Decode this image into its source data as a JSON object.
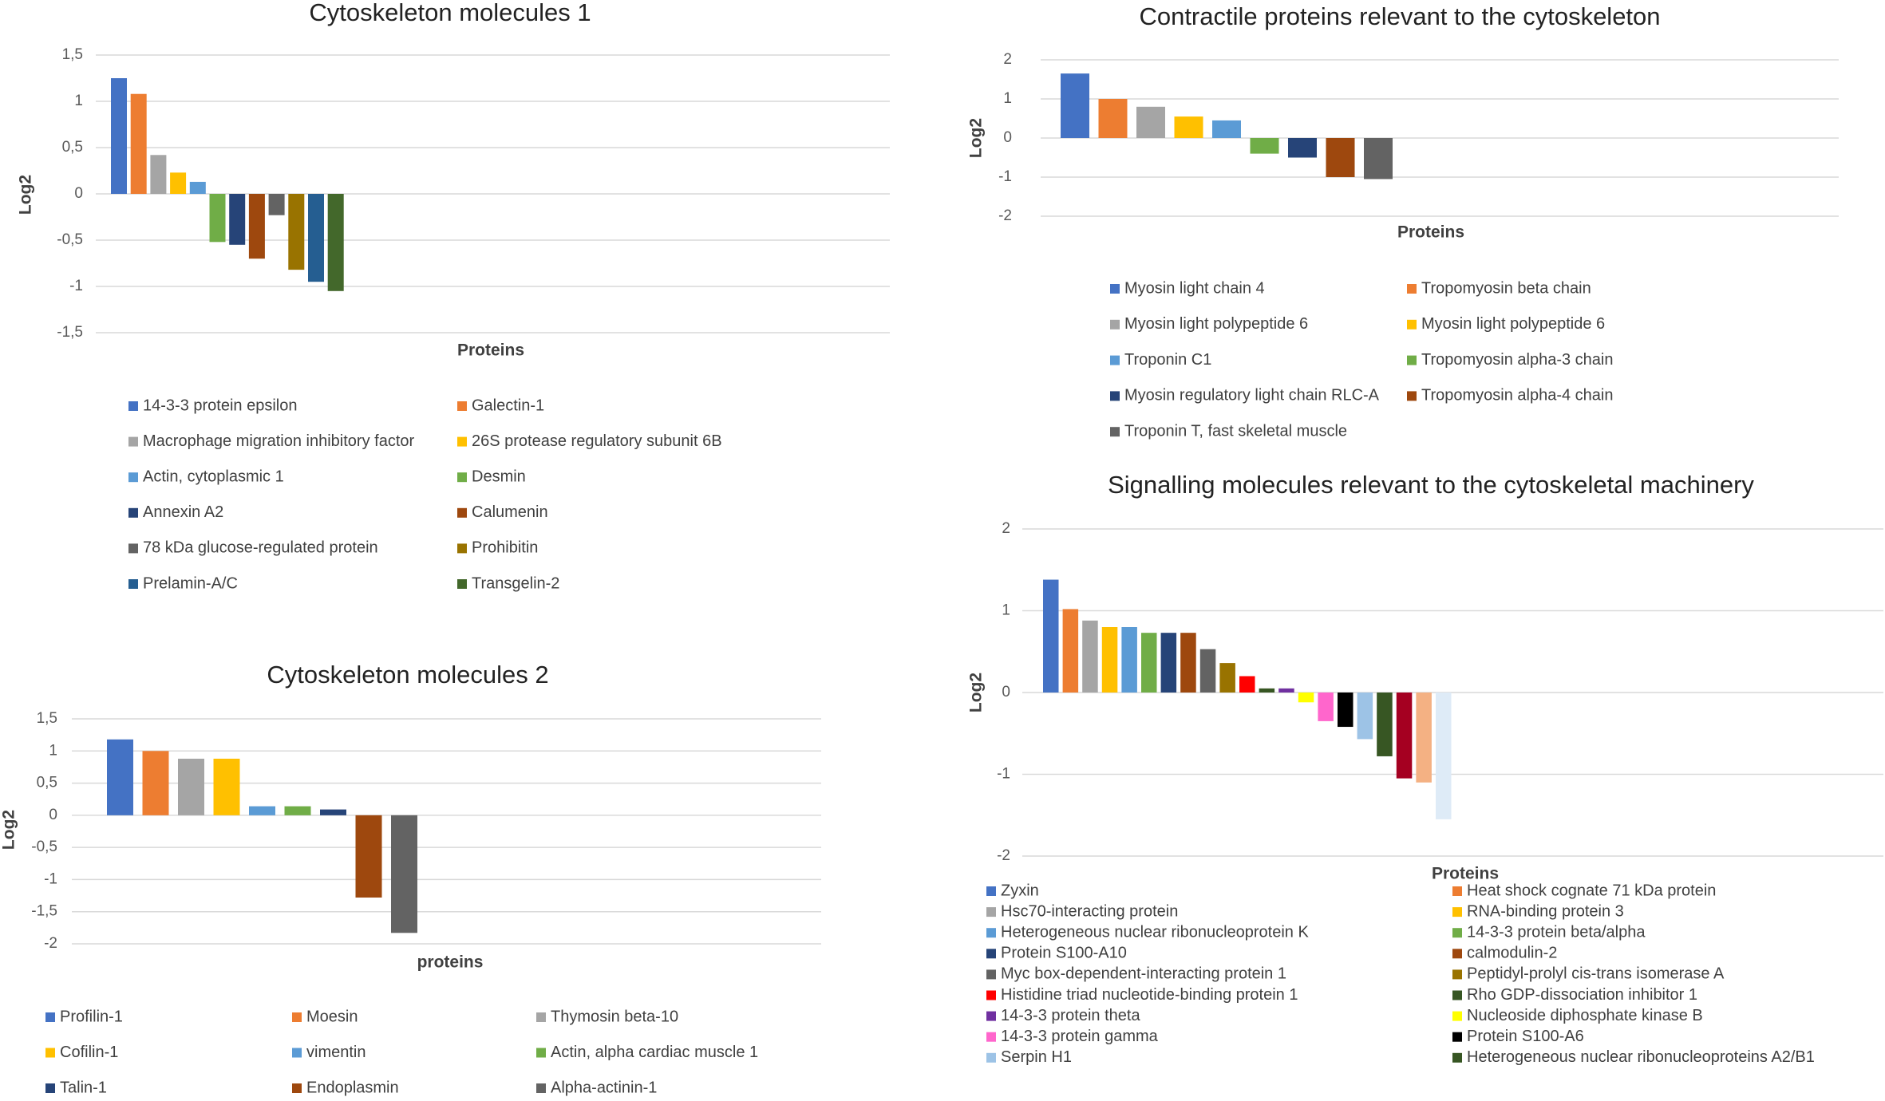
{
  "chart_data": [
    {
      "type": "bar",
      "title": "Cytoskeleton molecules 1",
      "x_label": "Proteins",
      "y_label": "Log2",
      "ylim": [
        -1.5,
        1.5
      ],
      "yticks": [
        {
          "value": 1.5,
          "label": "1,5"
        },
        1,
        {
          "value": 0.5,
          "label": "0,5"
        },
        0,
        {
          "value": -0.5,
          "label": "-0,5"
        },
        -1,
        {
          "value": -1.5,
          "label": "-1,5"
        }
      ],
      "grid": true,
      "series": [
        {
          "name": "14-3-3 protein epsilon",
          "color": "#4472c4",
          "values": [
            1.25
          ]
        },
        {
          "name": "Galectin-1",
          "color": "#ed7d31",
          "values": [
            1.08
          ]
        },
        {
          "name": "Macrophage migration inhibitory factor",
          "color": "#a5a5a5",
          "values": [
            0.42
          ]
        },
        {
          "name": "26S protease regulatory subunit 6B",
          "color": "#ffc000",
          "values": [
            0.23
          ]
        },
        {
          "name": "Actin, cytoplasmic 1",
          "color": "#5b9bd5",
          "values": [
            0.13
          ]
        },
        {
          "name": "Desmin",
          "color": "#70ad47",
          "values": [
            -0.52
          ]
        },
        {
          "name": "Annexin A2",
          "color": "#264478",
          "values": [
            -0.55
          ]
        },
        {
          "name": "Calumenin",
          "color": "#9e480e",
          "values": [
            -0.7
          ]
        },
        {
          "name": "78 kDa glucose-regulated protein",
          "color": "#636363",
          "values": [
            -0.23
          ]
        },
        {
          "name": "Prohibitin",
          "color": "#997300",
          "values": [
            -0.82
          ]
        },
        {
          "name": "Prelamin-A/C",
          "color": "#255e91",
          "values": [
            -0.95
          ]
        },
        {
          "name": "Transgelin-2",
          "color": "#43682b",
          "values": [
            -1.05
          ]
        }
      ]
    },
    {
      "type": "bar",
      "title": "Cytoskeleton molecules 2",
      "x_label": "proteins",
      "y_label": "Log2",
      "ylim": [
        -2,
        1.5
      ],
      "yticks": [
        {
          "value": 1.5,
          "label": "1,5"
        },
        1,
        {
          "value": 0.5,
          "label": "0,5"
        },
        0,
        {
          "value": -0.5,
          "label": "-0,5"
        },
        -1,
        {
          "value": -1.5,
          "label": "-1,5"
        },
        -2
      ],
      "grid": true,
      "series": [
        {
          "name": "Profilin-1",
          "color": "#4472c4",
          "values": [
            1.18
          ]
        },
        {
          "name": "Moesin",
          "color": "#ed7d31",
          "values": [
            1.0
          ]
        },
        {
          "name": "Thymosin beta-10",
          "color": "#a5a5a5",
          "values": [
            0.88
          ]
        },
        {
          "name": "Cofilin-1",
          "color": "#ffc000",
          "values": [
            0.88
          ]
        },
        {
          "name": "vimentin",
          "color": "#5b9bd5",
          "values": [
            0.14
          ]
        },
        {
          "name": "Actin, alpha cardiac muscle 1",
          "color": "#70ad47",
          "values": [
            0.14
          ]
        },
        {
          "name": "Talin-1",
          "color": "#264478",
          "values": [
            0.09
          ]
        },
        {
          "name": "Endoplasmin",
          "color": "#9e480e",
          "values": [
            -1.28
          ]
        },
        {
          "name": "Alpha-actinin-1",
          "color": "#636363",
          "values": [
            -1.83
          ]
        }
      ]
    },
    {
      "type": "bar",
      "title": "Contractile proteins relevant to the cytoskeleton",
      "x_label": "Proteins",
      "y_label": "Log2",
      "ylim": [
        -2,
        2
      ],
      "yticks": [
        2,
        1,
        0,
        -1,
        -2
      ],
      "grid": true,
      "series": [
        {
          "name": "Myosin light chain 4",
          "color": "#4472c4",
          "values": [
            1.65
          ]
        },
        {
          "name": "Tropomyosin beta chain",
          "color": "#ed7d31",
          "values": [
            1.0
          ]
        },
        {
          "name": "Myosin light polypeptide 6",
          "color": "#a5a5a5",
          "values": [
            0.8
          ]
        },
        {
          "name": "Myosin light polypeptide 6",
          "color": "#ffc000",
          "values": [
            0.55
          ]
        },
        {
          "name": "Troponin C1",
          "color": "#5b9bd5",
          "values": [
            0.45
          ]
        },
        {
          "name": "Tropomyosin alpha-3 chain",
          "color": "#70ad47",
          "values": [
            -0.4
          ]
        },
        {
          "name": "Myosin regulatory light chain RLC-A",
          "color": "#264478",
          "values": [
            -0.5
          ]
        },
        {
          "name": "Tropomyosin alpha-4 chain",
          "color": "#9e480e",
          "values": [
            -1.0
          ]
        },
        {
          "name": "Troponin T, fast skeletal muscle",
          "color": "#636363",
          "values": [
            -1.05
          ]
        }
      ]
    },
    {
      "type": "bar",
      "title": "Signalling molecules relevant to the cytoskeletal machinery",
      "x_label": "Proteins",
      "y_label": "Log2",
      "ylim": [
        -2,
        2
      ],
      "yticks": [
        2,
        1,
        0,
        -1,
        -2
      ],
      "grid": true,
      "series": [
        {
          "name": "Zyxin",
          "color": "#4472c4",
          "values": [
            1.38
          ]
        },
        {
          "name": "Heat shock cognate 71 kDa protein",
          "color": "#ed7d31",
          "values": [
            1.02
          ]
        },
        {
          "name": "Hsc70-interacting protein",
          "color": "#a5a5a5",
          "values": [
            0.88
          ]
        },
        {
          "name": "RNA-binding protein 3",
          "color": "#ffc000",
          "values": [
            0.8
          ]
        },
        {
          "name": "Heterogeneous nuclear ribonucleoprotein K",
          "color": "#5b9bd5",
          "values": [
            0.8
          ]
        },
        {
          "name": "14-3-3 protein beta/alpha",
          "color": "#70ad47",
          "values": [
            0.73
          ]
        },
        {
          "name": "Protein S100-A10",
          "color": "#264478",
          "values": [
            0.73
          ]
        },
        {
          "name": "calmodulin-2",
          "color": "#9e480e",
          "values": [
            0.73
          ]
        },
        {
          "name": "Myc box-dependent-interacting protein 1",
          "color": "#636363",
          "values": [
            0.53
          ]
        },
        {
          "name": "Peptidyl-prolyl cis-trans isomerase A",
          "color": "#997300",
          "values": [
            0.36
          ]
        },
        {
          "name": "Histidine triad nucleotide-binding protein 1",
          "color": "#ff0000",
          "values": [
            0.2
          ]
        },
        {
          "name": "Rho GDP-dissociation inhibitor 1",
          "color": "#375623",
          "values": [
            0.05
          ]
        },
        {
          "name": "14-3-3 protein theta",
          "color": "#7030a0",
          "values": [
            0.05
          ]
        },
        {
          "name": "Nucleoside diphosphate kinase B",
          "color": "#ffff00",
          "values": [
            -0.12
          ]
        },
        {
          "name": "14-3-3 protein gamma",
          "color": "#ff66cc",
          "values": [
            -0.35
          ]
        },
        {
          "name": "Protein S100-A6",
          "color": "#000000",
          "values": [
            -0.42
          ]
        },
        {
          "name": "Serpin H1",
          "color": "#9dc3e6",
          "values": [
            -0.57
          ]
        },
        {
          "name": "Heterogeneous nuclear ribonucleoproteins A2/B1",
          "color": "#375623",
          "values": [
            -0.78
          ]
        },
        {
          "name": null,
          "color": "#a50021",
          "values": [
            -1.05
          ]
        },
        {
          "name": null,
          "color": "#f4b183",
          "values": [
            -1.1
          ]
        },
        {
          "name": null,
          "color": "#deebf7",
          "values": [
            -1.55
          ]
        }
      ]
    }
  ]
}
